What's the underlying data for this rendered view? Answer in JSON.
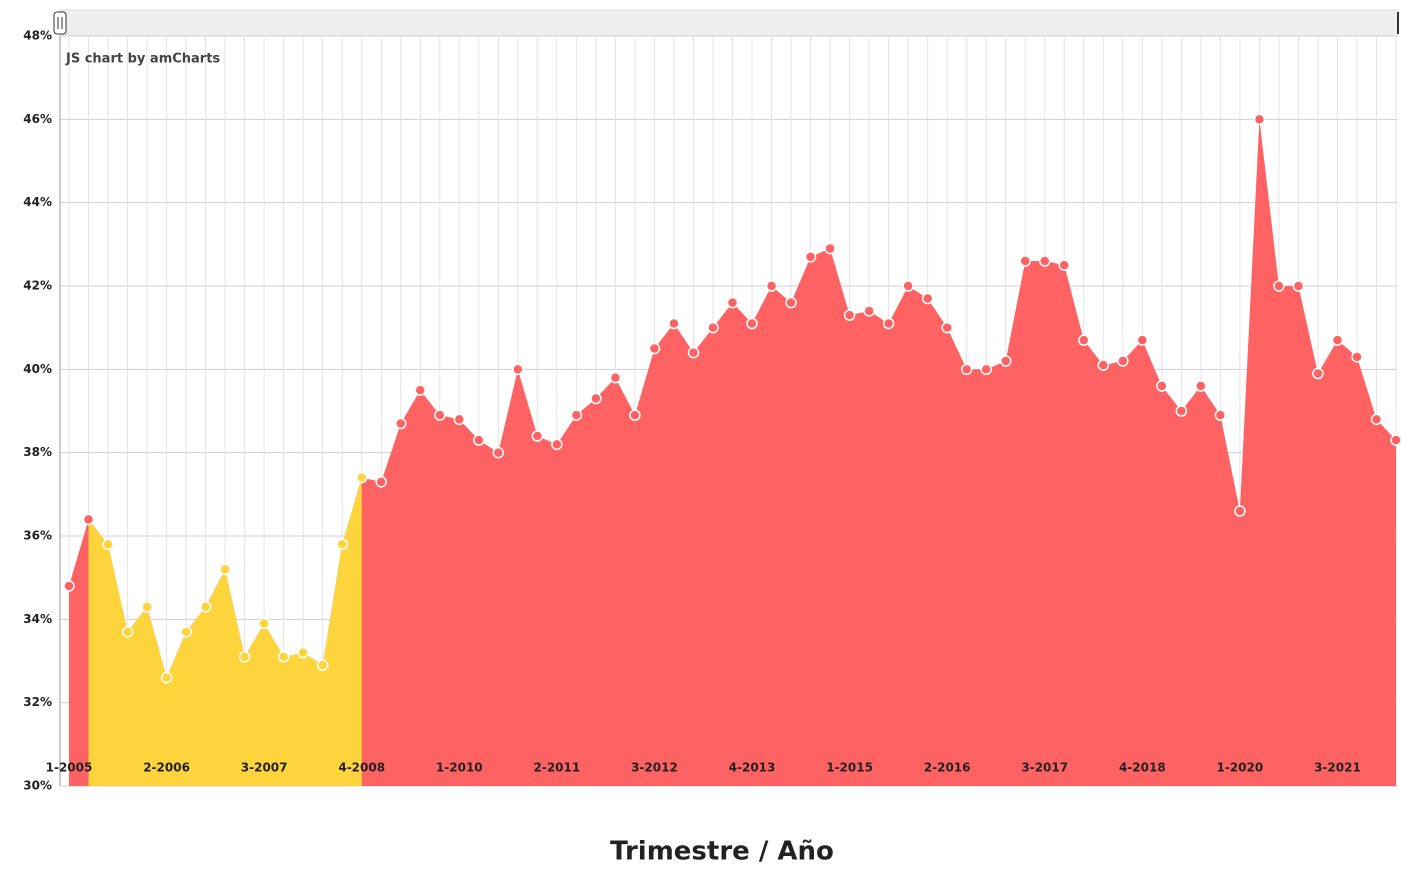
{
  "chart_data": {
    "type": "area",
    "credit": "JS chart by amCharts",
    "x_label": "Trimestre / Año",
    "categories": [
      "1-2005",
      null,
      null,
      null,
      null,
      "2-2006",
      null,
      null,
      null,
      null,
      "3-2007",
      null,
      null,
      null,
      null,
      "4-2008",
      null,
      null,
      null,
      null,
      "1-2010",
      null,
      null,
      null,
      null,
      "2-2011",
      null,
      null,
      null,
      null,
      "3-2012",
      null,
      null,
      null,
      null,
      "4-2013",
      null,
      null,
      null,
      null,
      "1-2015",
      null,
      null,
      null,
      null,
      "2-2016",
      null,
      null,
      null,
      null,
      "3-2017",
      null,
      null,
      null,
      null,
      "4-2018",
      null,
      null,
      null,
      null,
      "1-2020",
      null,
      null,
      null,
      null,
      "3-2021",
      null,
      null,
      null
    ],
    "values": [
      34.8,
      36.4,
      35.8,
      33.7,
      34.3,
      32.6,
      33.7,
      34.3,
      35.2,
      33.1,
      33.9,
      33.1,
      33.2,
      32.9,
      35.8,
      37.4,
      37.3,
      38.7,
      39.5,
      38.9,
      38.8,
      38.3,
      38.0,
      40.0,
      38.4,
      38.2,
      38.9,
      39.3,
      39.8,
      38.9,
      40.5,
      41.1,
      40.4,
      41.0,
      41.6,
      41.1,
      42.0,
      41.6,
      42.7,
      42.9,
      41.3,
      41.4,
      41.1,
      42.0,
      41.7,
      41.0,
      40.0,
      40.0,
      40.2,
      42.6,
      42.6,
      42.5,
      40.7,
      40.1,
      40.2,
      40.7,
      39.6,
      39.0,
      39.6,
      38.9,
      36.6,
      46.0,
      42.0,
      42.0,
      39.9,
      40.7,
      40.3,
      38.8,
      38.3
    ],
    "color": "#ff6262",
    "highlight_color": "#fdd43b",
    "highlight_from": 1,
    "highlight_to": 14,
    "ylim": [
      30,
      48
    ],
    "yticks": [
      {
        "value": 30,
        "label": "30%"
      },
      {
        "value": 32,
        "label": "32%"
      },
      {
        "value": 34,
        "label": "34%"
      },
      {
        "value": 36,
        "label": "36%"
      },
      {
        "value": 38,
        "label": "38%"
      },
      {
        "value": 40,
        "label": "40%"
      },
      {
        "value": 42,
        "label": "42%"
      },
      {
        "value": 44,
        "label": "44%"
      },
      {
        "value": 46,
        "label": "46%"
      },
      {
        "value": 48,
        "label": "48%"
      }
    ],
    "grid": true
  }
}
